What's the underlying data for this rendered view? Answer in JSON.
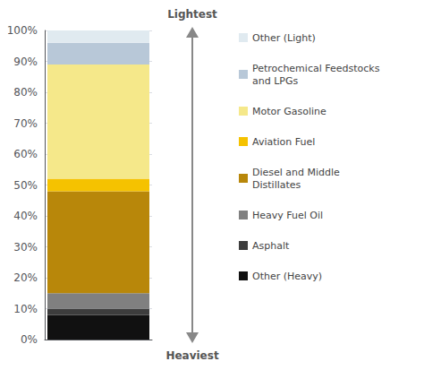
{
  "chart_data": {
    "type": "bar",
    "stacked": true,
    "categories": [
      null
    ],
    "series": [
      {
        "name": "Other (Heavy)",
        "color": "#111111",
        "values": [
          8
        ]
      },
      {
        "name": "Asphalt",
        "color": "#3d3d3d",
        "values": [
          2
        ]
      },
      {
        "name": "Heavy Fuel Oil",
        "color": "#808080",
        "values": [
          5
        ]
      },
      {
        "name": "Diesel and Middle\nDistillates",
        "color": "#b8870a",
        "values": [
          33
        ]
      },
      {
        "name": "Aviation Fuel",
        "color": "#f5c200",
        "values": [
          4
        ]
      },
      {
        "name": "Motor Gasoline",
        "color": "#f5e88a",
        "values": [
          37
        ]
      },
      {
        "name": "Petrochemical Feedstocks\nand LPGs",
        "color": "#b8c8d8",
        "values": [
          7
        ]
      },
      {
        "name": "Other (Light)",
        "color": "#e0eaf0",
        "values": [
          4
        ]
      }
    ],
    "ylim": [
      0,
      100
    ],
    "yticks": [
      {
        "value": 0,
        "label": "0%"
      },
      {
        "value": 10,
        "label": "10%"
      },
      {
        "value": 20,
        "label": "20%"
      },
      {
        "value": 30,
        "label": "30%"
      },
      {
        "value": 40,
        "label": "40%"
      },
      {
        "value": 50,
        "label": "50%"
      },
      {
        "value": 60,
        "label": "60%"
      },
      {
        "value": 70,
        "label": "70%"
      },
      {
        "value": 80,
        "label": "80%"
      },
      {
        "value": 90,
        "label": "90%"
      },
      {
        "value": 100,
        "label": "100%"
      }
    ],
    "grid": true,
    "legend": "right",
    "tick_labels": "y",
    "annotations": [
      "Lightest",
      "Heaviest"
    ]
  }
}
